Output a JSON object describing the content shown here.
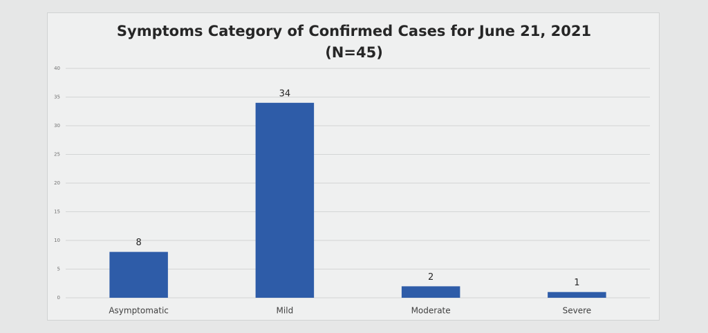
{
  "chart_data": {
    "type": "bar",
    "title": "Symptoms Category of Confirmed Cases for June 21, 2021 (N=45)",
    "categories": [
      "Asymptomatic",
      "Mild",
      "Moderate",
      "Severe"
    ],
    "values": [
      8,
      34,
      2,
      1
    ],
    "color": "#2e5ca8",
    "ylim": [
      0,
      40
    ],
    "yticks": [
      0,
      5,
      10,
      15,
      20,
      25,
      30,
      35,
      40
    ],
    "grid": true
  }
}
